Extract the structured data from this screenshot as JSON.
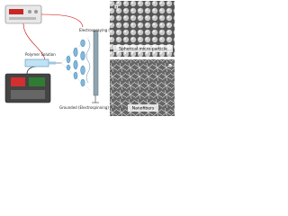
{
  "labels": {
    "electrospraying": "Electrospraying (ES)",
    "polymer_solution": "Polymer Solution",
    "collector": "Grounded (Electrospinning)"
  },
  "panels": [
    {
      "letter": "b",
      "caption": "Spherical micro-particle"
    },
    {
      "letter": "a",
      "caption": "Nanofibers"
    }
  ]
}
